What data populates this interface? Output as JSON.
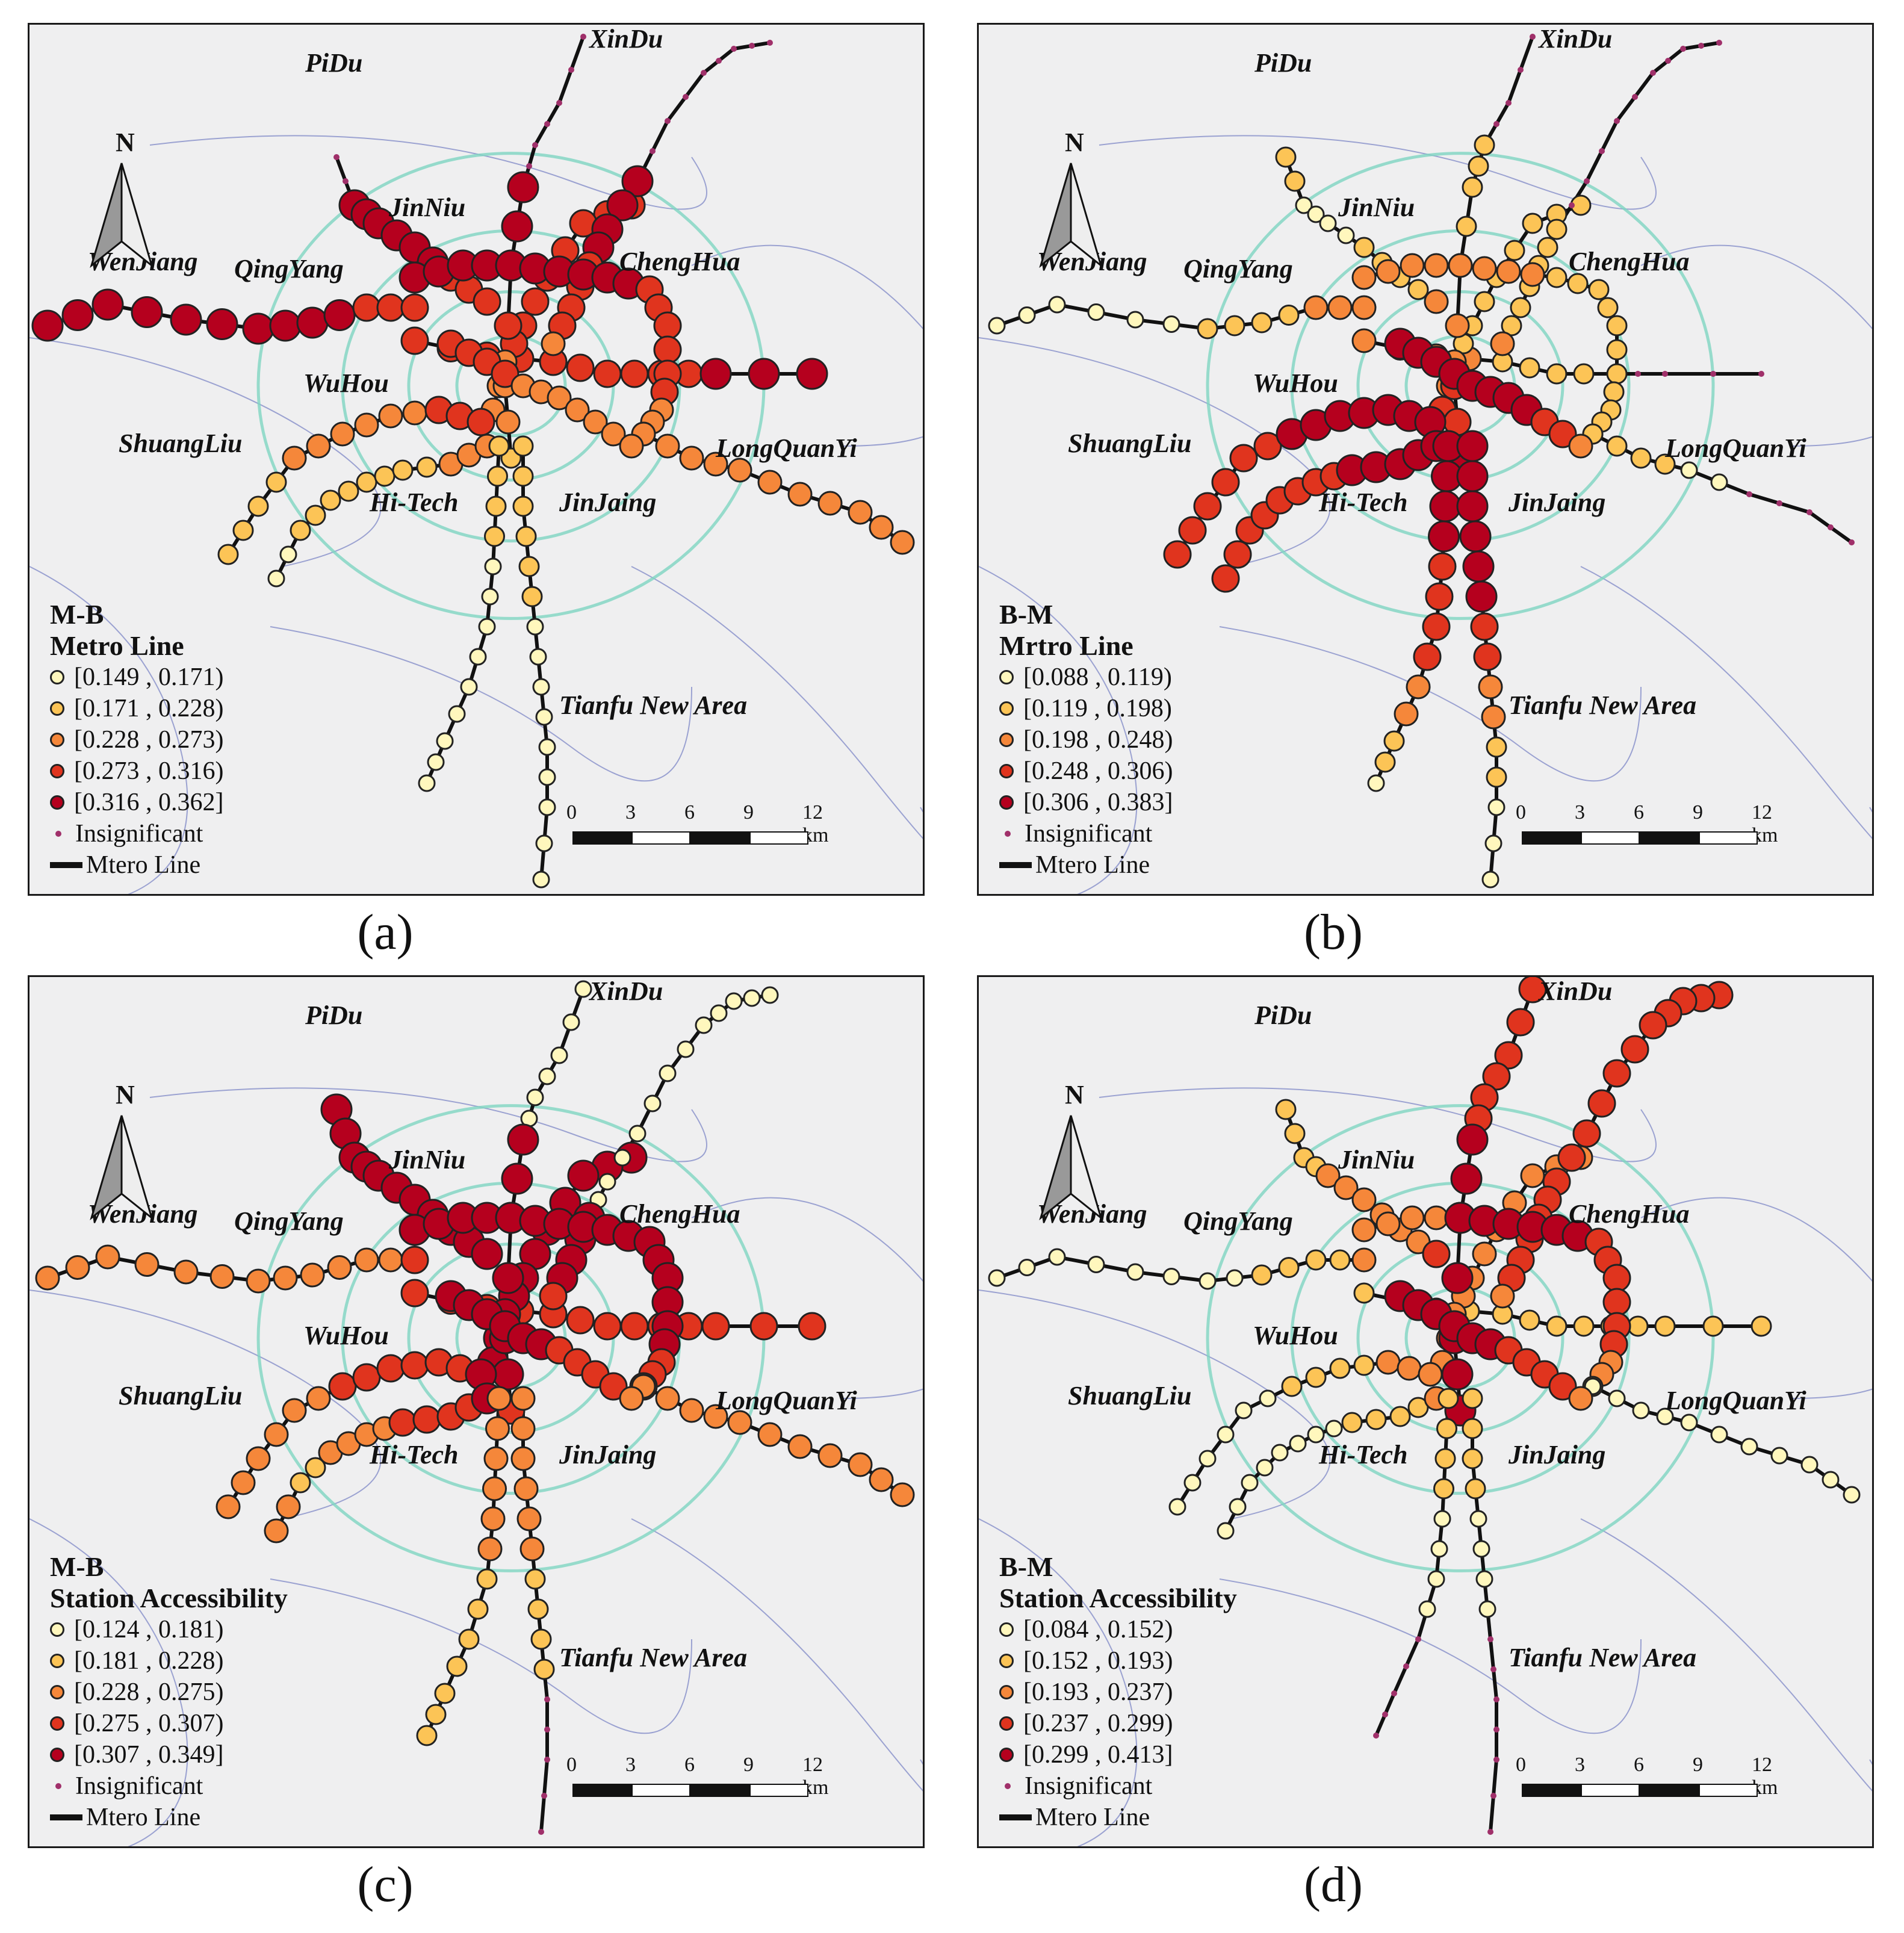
{
  "panels": [
    {
      "id": "a",
      "caption": "(a)",
      "title1": "M-B",
      "title2": "Metro Line",
      "legend": [
        "[0.149 , 0.171)",
        "[0.171 , 0.228)",
        "[0.228 , 0.273)",
        "[0.273 , 0.316)",
        "[0.316 , 0.362]"
      ]
    },
    {
      "id": "b",
      "caption": "(b)",
      "title1": "B-M",
      "title2": "Mrtro Line",
      "legend": [
        "[0.088 , 0.119)",
        "[0.119 , 0.198)",
        "[0.198 , 0.248)",
        "[0.248 , 0.306)",
        "[0.306 , 0.383]"
      ]
    },
    {
      "id": "c",
      "caption": "(c)",
      "title1": "M-B",
      "title2": "Station Accessibility",
      "legend": [
        "[0.124 , 0.181)",
        "[0.181 , 0.228)",
        "[0.228 , 0.275)",
        "[0.275 , 0.307)",
        "[0.307 , 0.349]"
      ]
    },
    {
      "id": "d",
      "caption": "(d)",
      "title1": "B-M",
      "title2": "Station Accessibility",
      "legend": [
        "[0.084 , 0.152)",
        "[0.152 , 0.193)",
        "[0.193 , 0.237)",
        "[0.237 , 0.299)",
        "[0.299 , 0.413]"
      ]
    }
  ],
  "common": {
    "insignificant": "Insignificant",
    "metro_line": "Mtero Line",
    "north": "N",
    "scale_ticks": [
      "0",
      "3",
      "6",
      "9",
      "12 km"
    ],
    "districts": [
      "PiDu",
      "XinDu",
      "JinNiu",
      "WenJiang",
      "QingYang",
      "ChengHua",
      "WuHou",
      "ShuangLiu",
      "LongQuanYi",
      "Hi-Tech",
      "JinJaing",
      "Tianfu New Area"
    ]
  },
  "class_colors": [
    "#fff7bd",
    "#fcc456",
    "#f5873a",
    "#e0341e",
    "#b5001e"
  ]
}
